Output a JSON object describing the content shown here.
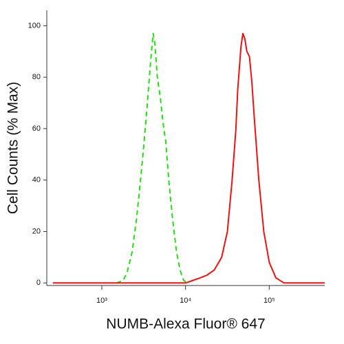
{
  "chart_data": {
    "type": "line",
    "x_label": "NUMB-Alexa Fluor® 647",
    "y_label": "Cell Counts (% Max)",
    "xscale": "log",
    "xlim": [
      220,
      460000
    ],
    "ylim": [
      -1,
      106
    ],
    "xticks": [
      {
        "value": 1000,
        "label": "10³"
      },
      {
        "value": 10000,
        "label": "10⁴"
      },
      {
        "value": 100000,
        "label": "10⁵"
      }
    ],
    "yticks": [
      0,
      20,
      40,
      60,
      80,
      100
    ],
    "series": [
      {
        "color": "#22dd11",
        "dash": true,
        "x": [
          1500,
          1800,
          2000,
          2300,
          2600,
          2900,
          3200,
          3500,
          3800,
          4100,
          4300,
          4600,
          5000,
          5400,
          5800,
          6300,
          7000,
          7800,
          8600,
          9500,
          10500
        ],
        "values": [
          0,
          1,
          4,
          12,
          25,
          40,
          55,
          70,
          85,
          97,
          93,
          80,
          72,
          62,
          55,
          40,
          25,
          12,
          5,
          1,
          0
        ]
      },
      {
        "color": "#ee1111",
        "dash": false,
        "x": [
          260,
          10000,
          12300,
          15000,
          18000,
          22000,
          27000,
          31600,
          36000,
          40000,
          42000,
          46000,
          48400,
          51000,
          54000,
          58000,
          62000,
          66000,
          75000,
          86000,
          100000,
          120000,
          150000,
          460000
        ],
        "values": [
          0,
          0,
          1,
          2,
          3,
          5,
          10,
          20,
          40,
          60,
          75,
          92,
          97,
          95,
          90,
          88,
          78,
          65,
          40,
          20,
          8,
          2,
          0,
          0
        ]
      }
    ]
  }
}
